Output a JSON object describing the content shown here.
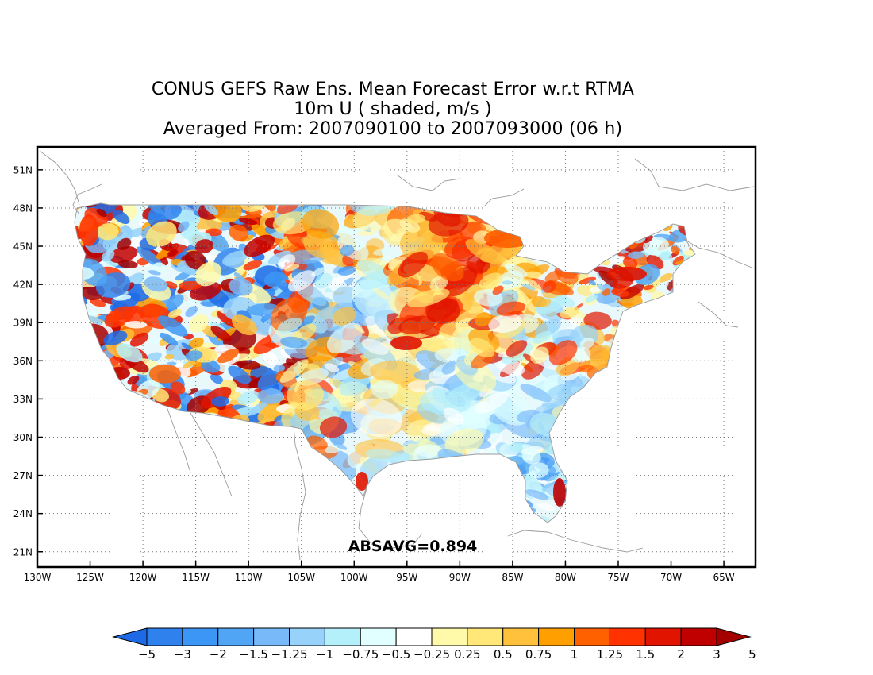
{
  "title": {
    "line1": "CONUS GEFS Raw Ens. Mean Forecast Error w.r.t RTMA",
    "line2": "10m U ( shaded, m/s )",
    "line3": "Averaged From: 2007090100 to 2007093000 (06 h)"
  },
  "map": {
    "lon_range": [
      -130,
      -62
    ],
    "lat_range": [
      19.8,
      52.8
    ],
    "grid": "dotted",
    "lon_ticks": [
      {
        "value": -130,
        "label": "130W"
      },
      {
        "value": -125,
        "label": "125W"
      },
      {
        "value": -120,
        "label": "120W"
      },
      {
        "value": -115,
        "label": "115W"
      },
      {
        "value": -110,
        "label": "110W"
      },
      {
        "value": -105,
        "label": "105W"
      },
      {
        "value": -100,
        "label": "100W"
      },
      {
        "value": -95,
        "label": "95W"
      },
      {
        "value": -90,
        "label": "90W"
      },
      {
        "value": -85,
        "label": "85W"
      },
      {
        "value": -80,
        "label": "80W"
      },
      {
        "value": -75,
        "label": "75W"
      },
      {
        "value": -70,
        "label": "70W"
      },
      {
        "value": -65,
        "label": "65W"
      }
    ],
    "lat_ticks": [
      {
        "value": 51,
        "label": "51N"
      },
      {
        "value": 48,
        "label": "48N"
      },
      {
        "value": 45,
        "label": "45N"
      },
      {
        "value": 42,
        "label": "42N"
      },
      {
        "value": 39,
        "label": "39N"
      },
      {
        "value": 36,
        "label": "36N"
      },
      {
        "value": 33,
        "label": "33N"
      },
      {
        "value": 30,
        "label": "30N"
      },
      {
        "value": 27,
        "label": "27N"
      },
      {
        "value": 24,
        "label": "24N"
      },
      {
        "value": 21,
        "label": "21N"
      }
    ],
    "annotation": "ABSAVG=0.894"
  },
  "colorbar": {
    "colors": [
      "#1e6ae6",
      "#2f82ee",
      "#3c96f5",
      "#50a5f5",
      "#78b9fa",
      "#96d2fa",
      "#b4f0fa",
      "#e1ffff",
      "#ffffff",
      "#fffaaa",
      "#ffe878",
      "#ffc03c",
      "#ffa000",
      "#ff6000",
      "#ff3200",
      "#e11400",
      "#c00000",
      "#a50000"
    ],
    "labels": [
      "-5",
      "-3",
      "-2",
      "-1.5",
      "-1.25",
      "-1",
      "-0.75",
      "-0.5",
      "-0.25",
      "0.25",
      "0.5",
      "0.75",
      "1",
      "1.25",
      "1.5",
      "2",
      "3",
      "5"
    ]
  }
}
